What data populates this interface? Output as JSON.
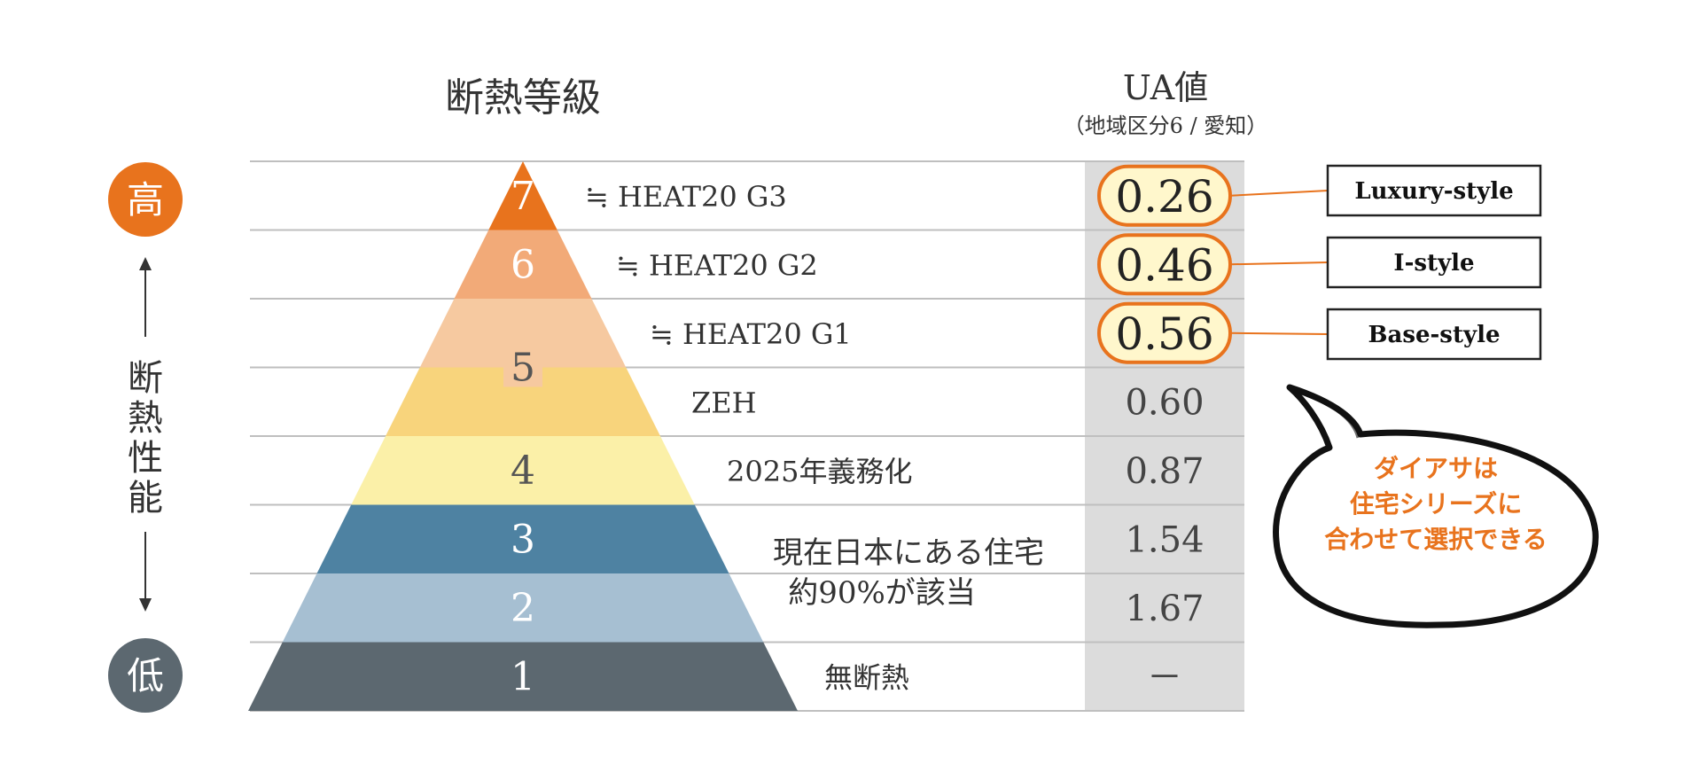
{
  "header": {
    "title": "断熱等級",
    "ua_title": "UA値",
    "ua_subtitle": "（地域区分6 / 愛知）"
  },
  "axis": {
    "high": "高",
    "low": "低",
    "label_chars": [
      "断",
      "熱",
      "性",
      "能"
    ]
  },
  "levels": [
    {
      "grade": "7",
      "fill": "#E8731D",
      "desc": "≒ HEAT20 G3",
      "ua": "0.26",
      "highlight": true,
      "style_tag": "Luxury-style"
    },
    {
      "grade": "6",
      "fill": "#F2AA78",
      "desc": "≒ HEAT20 G2",
      "ua": "0.46",
      "highlight": true,
      "style_tag": "I-style"
    },
    {
      "grade": "5",
      "fill": "#F6C9A0",
      "desc": "≒ HEAT20 G1",
      "ua": "0.56",
      "highlight": true,
      "style_tag": "Base-style"
    },
    {
      "grade": "",
      "fill": "#F8D47C",
      "desc": "ZEH",
      "ua": "0.60",
      "highlight": false
    },
    {
      "grade": "4",
      "fill": "#FBF0A8",
      "desc": "2025年義務化",
      "ua": "0.87",
      "highlight": false
    },
    {
      "grade": "3",
      "fill": "#4E82A2",
      "desc": "",
      "ua": "1.54",
      "highlight": false
    },
    {
      "grade": "2",
      "fill": "#A6BFD2",
      "desc": "",
      "ua": "1.67",
      "highlight": false
    },
    {
      "grade": "1",
      "fill": "#5C6870",
      "desc": "無断熱",
      "ua": "－",
      "highlight": false
    }
  ],
  "existing_homes_note": [
    "現在日本にある住宅",
    "約90%が該当"
  ],
  "bubble_lines": [
    "ダイアサは",
    "住宅シリーズに",
    "合わせて選択できる"
  ],
  "colors": {
    "accent_orange": "#E8731D",
    "dark_gray": "#5C6870",
    "ua_column_bg": "#DCDCDC",
    "highlight_fill": "#FFF7CC"
  }
}
